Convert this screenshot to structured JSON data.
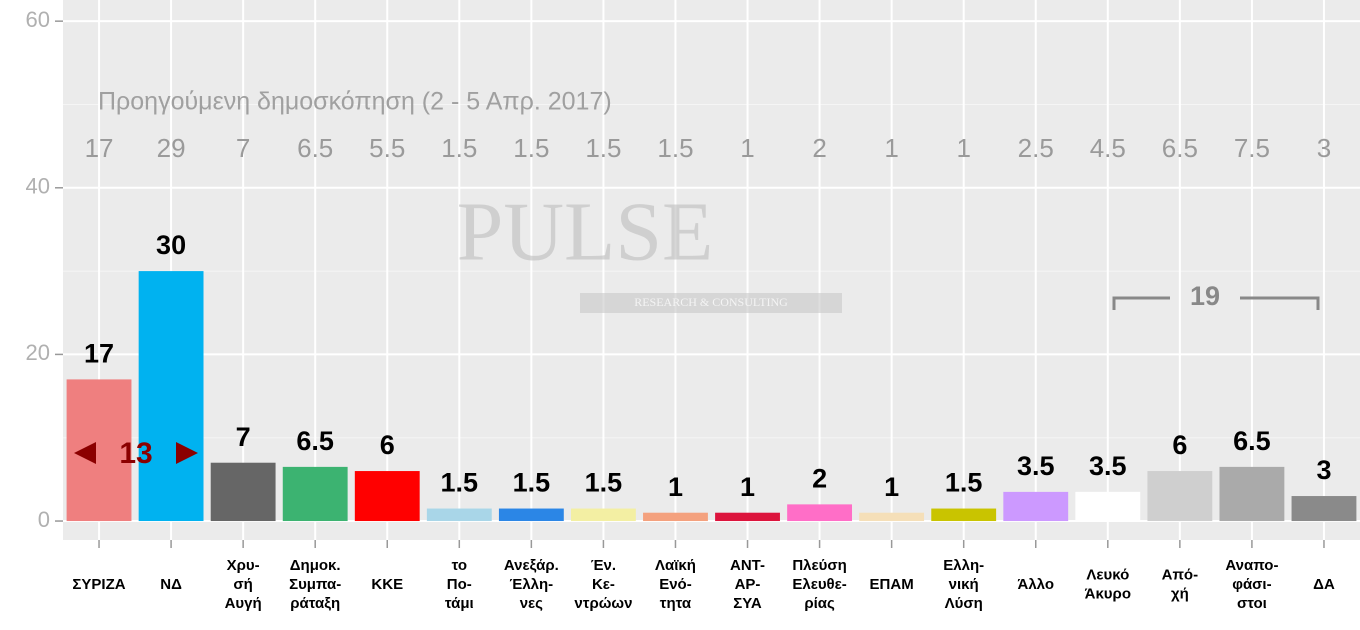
{
  "chart_data": {
    "type": "bar",
    "categories": [
      "ΣΥΡΙΖΑ",
      "ΝΔ",
      "Χρυ-\nσή\nΑυγή",
      "Δημοκ.\nΣυμπα-\nράταξη",
      "ΚΚΕ",
      "το\nΠο-\nτάμι",
      "Ανεξάρ.\nΈλλη-\nνες",
      "Έν.\nΚε-\nντρώων",
      "Λαϊκή\nΕνό-\nτητα",
      "ΑΝΤ-\nΑΡ-\nΣΥΑ",
      "Πλεύση\nΕλευθε-\nρίας",
      "ΕΠΑΜ",
      "Ελλη-\nνική\nΛύση",
      "Άλλο",
      "Λευκό\nΆκυρο",
      "Από-\nχή",
      "Αναπο-\nφάσι-\nστοι",
      "ΔΑ"
    ],
    "values": [
      17,
      30,
      7,
      6.5,
      6,
      1.5,
      1.5,
      1.5,
      1,
      1,
      2,
      1,
      1.5,
      3.5,
      3.5,
      6,
      6.5,
      3
    ],
    "colors": [
      "#ef7f7f",
      "#00b2f0",
      "#666666",
      "#3cb371",
      "#ff0000",
      "#a9d6e8",
      "#2b86e6",
      "#f3efa3",
      "#f4a17e",
      "#dc143c",
      "#ff6ec7",
      "#f5dfb8",
      "#c9c400",
      "#cc99ff",
      "#ffffff",
      "#cfcfcf",
      "#aaaaaa",
      "#8a8a8a"
    ],
    "previous_label": "Προηγούμενη δημοσκόπηση (2 - 5 Απρ. 2017)",
    "previous_values": [
      17,
      29,
      7,
      6.5,
      5.5,
      1.5,
      1.5,
      1.5,
      1.5,
      1,
      2,
      1,
      1,
      2.5,
      4.5,
      6.5,
      7.5,
      3
    ],
    "gap_annotation": 13,
    "bracket_annotation": 19,
    "watermark": {
      "title": "PULSE",
      "subtitle": "RESEARCH & CONSULTING"
    },
    "ylim": [
      -2,
      62
    ],
    "yticks": [
      0,
      20,
      40,
      60
    ],
    "minor_yticks": [
      10,
      30,
      50
    ],
    "grid": true
  }
}
